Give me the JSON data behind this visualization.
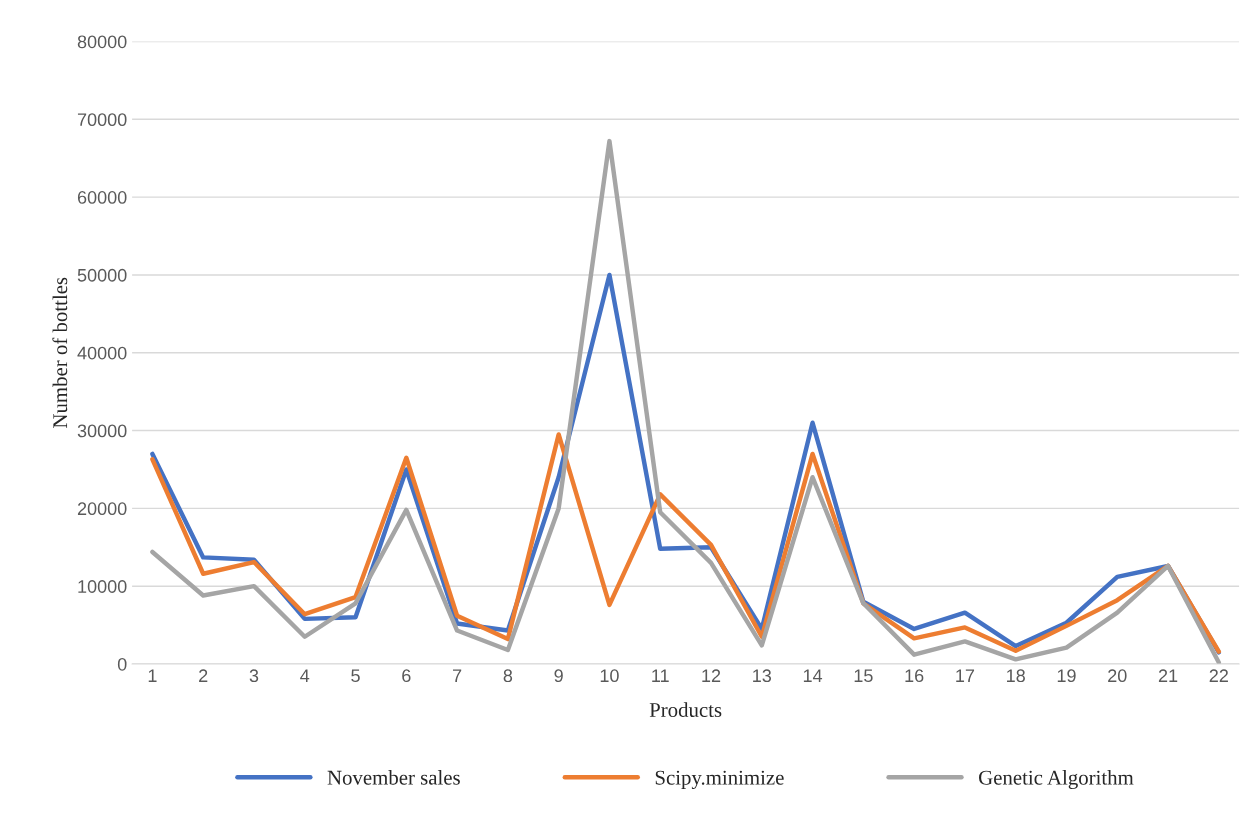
{
  "chart_data": {
    "type": "line",
    "xlabel": "Products",
    "ylabel": "Number of bottles",
    "categories": [
      "1",
      "2",
      "3",
      "4",
      "5",
      "6",
      "7",
      "8",
      "9",
      "10",
      "11",
      "12",
      "13",
      "14",
      "15",
      "16",
      "17",
      "18",
      "19",
      "20",
      "21",
      "22"
    ],
    "series": [
      {
        "name": "November sales",
        "color": "#4472c4",
        "values": [
          27000,
          13700,
          13400,
          5800,
          6000,
          25000,
          5200,
          4300,
          24000,
          50000,
          14800,
          15000,
          4500,
          31000,
          8000,
          4500,
          6600,
          2300,
          5300,
          11200,
          12600,
          1500
        ]
      },
      {
        "name": "Scipy.minimize",
        "color": "#ed7d31",
        "values": [
          26300,
          11600,
          13100,
          6400,
          8600,
          26500,
          6200,
          3200,
          29500,
          7600,
          21800,
          15300,
          3500,
          27000,
          7800,
          3300,
          4700,
          1700,
          4900,
          8200,
          12600,
          1600
        ]
      },
      {
        "name": "Genetic Algorithm",
        "color": "#a5a5a5",
        "values": [
          14400,
          8800,
          10000,
          3500,
          7800,
          19800,
          4300,
          1800,
          20000,
          67200,
          19500,
          13000,
          2400,
          24000,
          7800,
          1200,
          2900,
          600,
          2100,
          6600,
          12600,
          200
        ]
      }
    ],
    "ylim": [
      0,
      80000
    ],
    "yticks": [
      0,
      10000,
      20000,
      30000,
      40000,
      50000,
      60000,
      70000,
      80000
    ],
    "grid": "y",
    "legend": "bottom",
    "marker": "none",
    "line_style": "solid"
  }
}
